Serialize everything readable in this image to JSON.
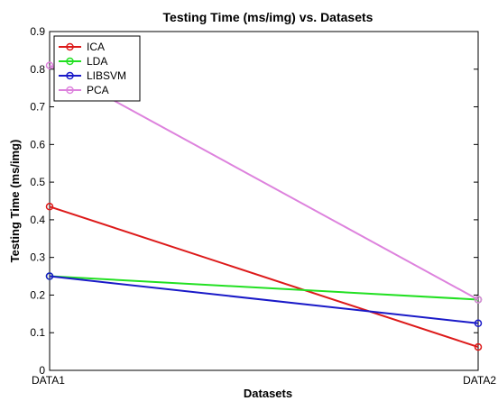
{
  "chart_data": {
    "type": "line",
    "title": "Testing Time (ms/img) vs. Datasets",
    "xlabel": "Datasets",
    "ylabel": "Testing Time (ms/img)",
    "categories": [
      "DATA1",
      "DATA2"
    ],
    "ylim": [
      0,
      0.9
    ],
    "yticks": [
      "0",
      "0.1",
      "0.2",
      "0.3",
      "0.4",
      "0.5",
      "0.6",
      "0.7",
      "0.8",
      "0.9"
    ],
    "grid": false,
    "legend_position": "top-left",
    "series": [
      {
        "name": "ICA",
        "color": "#dd1a1a",
        "values": [
          0.435,
          0.062
        ]
      },
      {
        "name": "LDA",
        "color": "#22e022",
        "values": [
          0.25,
          0.188
        ]
      },
      {
        "name": "LIBSVM",
        "color": "#1a1ac8",
        "values": [
          0.25,
          0.125
        ]
      },
      {
        "name": "PCA",
        "color": "#dd82dd",
        "values": [
          0.81,
          0.188
        ]
      }
    ]
  }
}
